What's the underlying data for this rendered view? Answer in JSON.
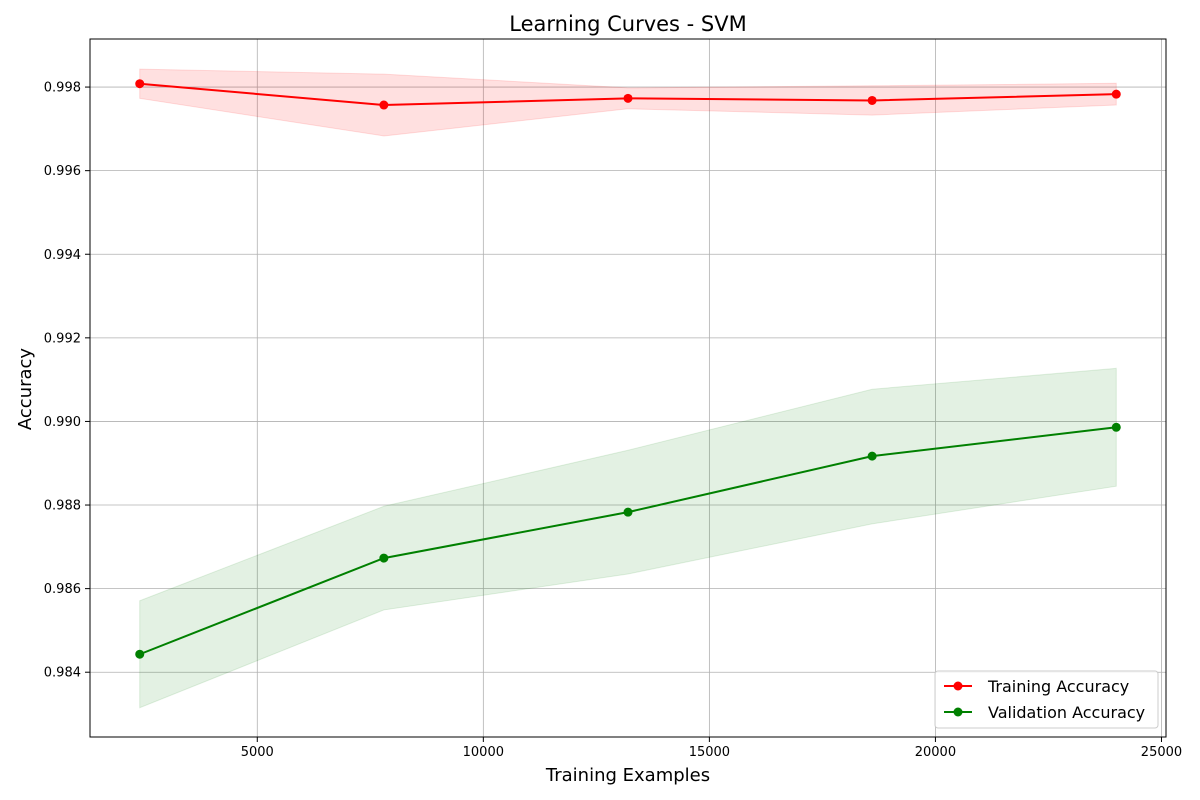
{
  "chart_data": {
    "type": "line",
    "title": "Learning Curves - SVM",
    "xlabel": "Training Examples",
    "ylabel": "Accuracy",
    "xlim": [
      1300,
      25100
    ],
    "ylim": [
      0.98245,
      0.99915
    ],
    "xticks": [
      5000,
      10000,
      15000,
      20000,
      25000
    ],
    "xtick_labels": [
      "5000",
      "10000",
      "15000",
      "20000",
      "25000"
    ],
    "yticks": [
      0.984,
      0.986,
      0.988,
      0.99,
      0.992,
      0.994,
      0.996,
      0.998
    ],
    "ytick_labels": [
      "0.984",
      "0.986",
      "0.988",
      "0.990",
      "0.992",
      "0.994",
      "0.996",
      "0.998"
    ],
    "grid": true,
    "legend_position": "bottom-right",
    "x": [
      2400,
      7800,
      13200,
      18600,
      24000
    ],
    "series": [
      {
        "name": "Training Accuracy",
        "color": "#ff0000",
        "band_color": "#ff0000",
        "band_opacity": 0.12,
        "values": [
          0.99808,
          0.99757,
          0.99773,
          0.99768,
          0.99783
        ],
        "lower": [
          0.99773,
          0.99683,
          0.99748,
          0.99733,
          0.99757
        ],
        "upper": [
          0.99843,
          0.99831,
          0.99798,
          0.99803,
          0.99809
        ]
      },
      {
        "name": "Validation Accuracy",
        "color": "#008000",
        "band_color": "#008000",
        "band_opacity": 0.11,
        "values": [
          0.98443,
          0.98673,
          0.98783,
          0.98917,
          0.98986
        ],
        "lower": [
          0.98315,
          0.98549,
          0.98635,
          0.98755,
          0.98845
        ],
        "upper": [
          0.98571,
          0.98797,
          0.98931,
          0.99077,
          0.99127
        ]
      }
    ]
  }
}
